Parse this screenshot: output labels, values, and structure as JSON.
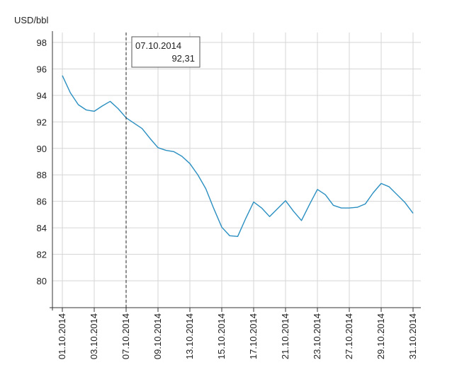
{
  "chart_data": {
    "type": "line",
    "title": "",
    "ylabel": "USD/bbl",
    "xlabel": "",
    "ylim": [
      78,
      98
    ],
    "yticks": [
      80,
      82,
      84,
      86,
      88,
      90,
      92,
      94,
      96,
      98
    ],
    "ytick_labels": [
      "80",
      "82",
      "84",
      "86",
      "88",
      "90",
      "92",
      "94",
      "96",
      "98"
    ],
    "xtick_labels": [
      "01.10.2014",
      "03.10.2014",
      "07.10.2014",
      "09.10.2014",
      "13.10.2014",
      "15.10.2014",
      "17.10.2014",
      "21.10.2014",
      "23.10.2014",
      "27.10.2014",
      "29.10.2014",
      "31.10.2014"
    ],
    "xtick_index": [
      0,
      4,
      8,
      12,
      16,
      20,
      24,
      28,
      32,
      36,
      40,
      44
    ],
    "grid": true,
    "line_color": "#2a8fc1",
    "grid_color": "#d6d6d6",
    "series": [
      {
        "values": [
          95.5,
          94.2,
          93.3,
          92.9,
          92.8,
          93.2,
          93.55,
          93.0,
          92.31,
          91.9,
          91.5,
          90.75,
          90.05,
          89.85,
          89.75,
          89.4,
          88.85,
          88.0,
          86.95,
          85.45,
          84.05,
          83.4,
          83.35,
          84.7,
          85.95,
          85.5,
          84.85,
          85.45,
          86.05,
          85.25,
          84.55,
          85.75,
          86.9,
          86.5,
          85.7,
          85.5,
          85.5,
          85.55,
          85.8,
          86.65,
          87.35,
          87.1,
          86.5,
          85.9,
          85.1
        ]
      }
    ],
    "tooltip": {
      "date": "07.10.2014",
      "value": "92,31",
      "index": 8
    }
  }
}
